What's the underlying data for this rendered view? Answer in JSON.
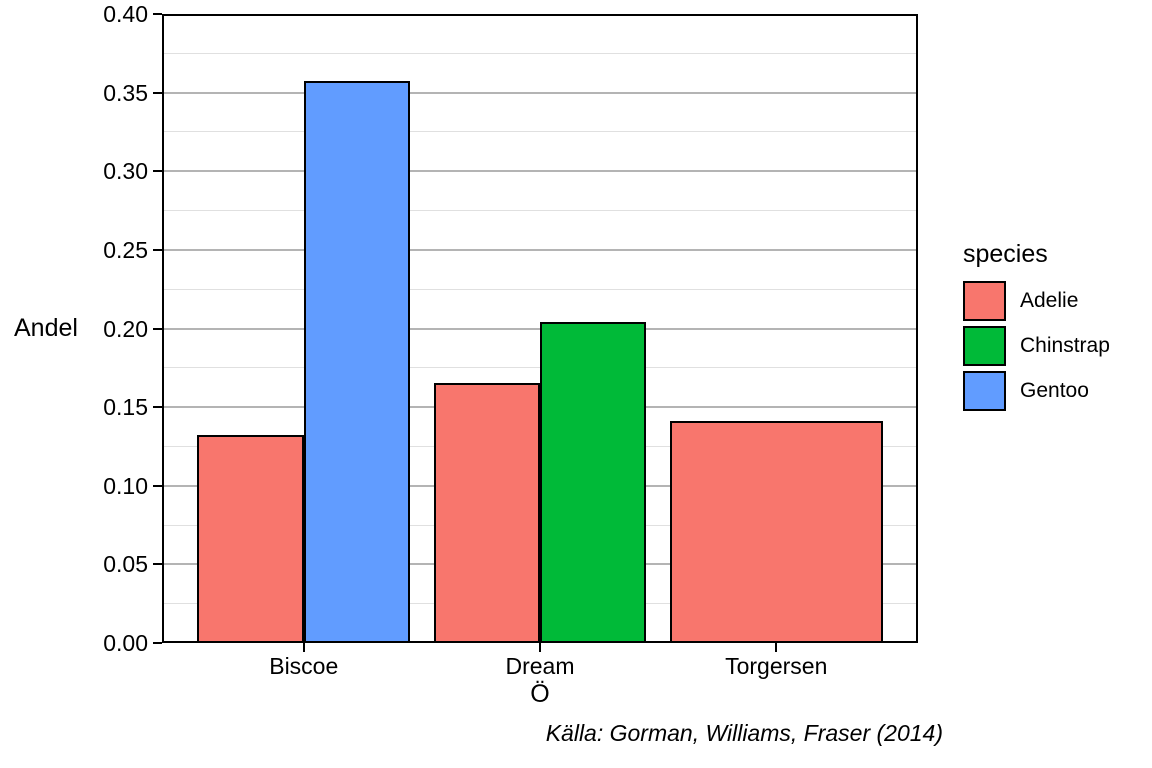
{
  "chart_data": {
    "type": "bar",
    "title": "",
    "xlabel": "Ö",
    "ylabel": "Andel",
    "caption": "Källa: Gorman, Williams, Fraser (2014)",
    "categories": [
      "Biscoe",
      "Dream",
      "Torgersen"
    ],
    "series": [
      {
        "name": "Adelie",
        "color": "#F8766D",
        "values": [
          0.1321,
          0.1652,
          0.1411
        ]
      },
      {
        "name": "Chinstrap",
        "color": "#00BA38",
        "values": [
          null,
          0.2042,
          null
        ]
      },
      {
        "name": "Gentoo",
        "color": "#619CFF",
        "values": [
          0.3574,
          null,
          null
        ]
      }
    ],
    "ylim": [
      0,
      0.4
    ],
    "y_major_ticks": [
      0,
      0.05,
      0.1,
      0.15,
      0.2,
      0.25,
      0.3,
      0.35,
      0.4
    ],
    "y_tick_labels": [
      "0.00",
      "0.05",
      "0.10",
      "0.15",
      "0.20",
      "0.25",
      "0.30",
      "0.35",
      "0.40"
    ],
    "y_minor_ticks": [
      0.025,
      0.075,
      0.125,
      0.175,
      0.225,
      0.275,
      0.325,
      0.375
    ],
    "grid": "horizontal-only",
    "legend_position": "right",
    "bar_border_color": "#000000",
    "dodge": "preserve-total"
  },
  "legend": {
    "title": "species",
    "entries": [
      {
        "label": "Adelie",
        "color": "#F8766D"
      },
      {
        "label": "Chinstrap",
        "color": "#00BA38"
      },
      {
        "label": "Gentoo",
        "color": "#619CFF"
      }
    ]
  },
  "colors": {
    "grid_major": "#B4B4B4",
    "grid_minor": "#E0E0E0",
    "panel_border": "#000000",
    "background": "#FFFFFF",
    "text": "#000000"
  }
}
